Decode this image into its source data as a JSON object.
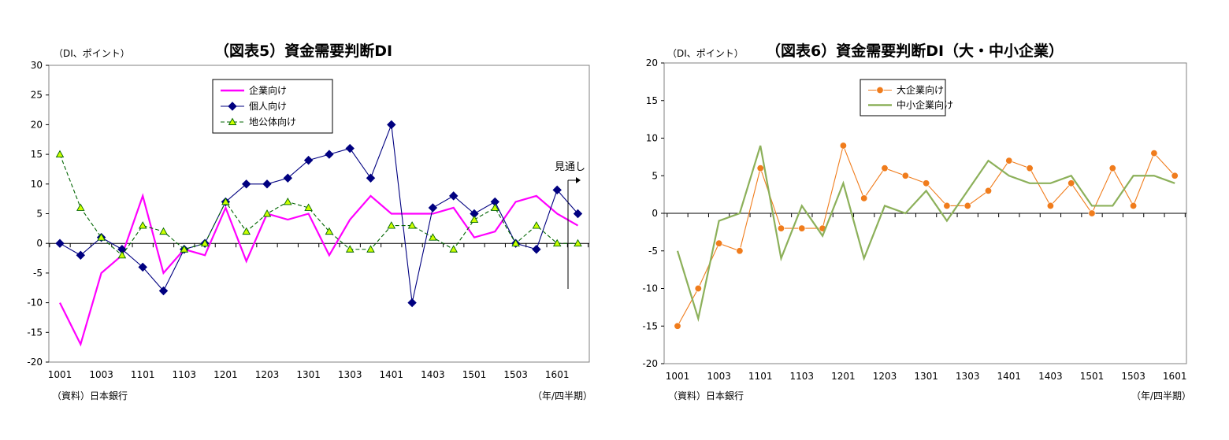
{
  "charts": [
    {
      "title": "（図表5）資金需要判断DI",
      "unit_label": "（DI、ポイント）",
      "source": "（資料）日本銀行",
      "period_label": "（年/四半期）",
      "outlook_label": "見通し"
    },
    {
      "title": "（図表6）資金需要判断DI（大・中小企業）",
      "unit_label": "（DI、ポイント）",
      "source": "（資料）日本銀行",
      "period_label": "（年/四半期）"
    }
  ],
  "chart_data": [
    {
      "type": "line",
      "title": "（図表5）資金需要判断DI",
      "ylabel": "（DI、ポイント）",
      "xlabel": "（年/四半期）",
      "ylim": [
        -20,
        30
      ],
      "yticks": [
        -20,
        -15,
        -10,
        -5,
        0,
        5,
        10,
        15,
        20,
        25,
        30
      ],
      "categories": [
        "1001",
        "1002",
        "1003",
        "1004",
        "1101",
        "1102",
        "1103",
        "1104",
        "1201",
        "1202",
        "1203",
        "1204",
        "1301",
        "1302",
        "1303",
        "1304",
        "1401",
        "1402",
        "1403",
        "1404",
        "1501",
        "1502",
        "1503",
        "1504",
        "1601",
        "1602"
      ],
      "tick_labels": [
        "1001",
        "1003",
        "1101",
        "1103",
        "1201",
        "1203",
        "1301",
        "1303",
        "1401",
        "1403",
        "1501",
        "1503",
        "1601"
      ],
      "legend_position": "top-center",
      "series": [
        {
          "name": "企業向け",
          "color": "#ff00ff",
          "style": "solid",
          "marker": "none",
          "values": [
            -10,
            -17,
            -5,
            -2,
            8,
            -5,
            -1,
            -2,
            6,
            -3,
            5,
            4,
            5,
            -2,
            4,
            8,
            5,
            5,
            5,
            6,
            1,
            2,
            7,
            8,
            5,
            3
          ]
        },
        {
          "name": "個人向け",
          "color": "#000080",
          "style": "solid",
          "marker": "diamond",
          "values": [
            0,
            -2,
            1,
            -1,
            -4,
            -8,
            -1,
            0,
            7,
            10,
            10,
            11,
            14,
            15,
            16,
            11,
            20,
            -10,
            6,
            8,
            5,
            7,
            0,
            -1,
            9,
            5
          ]
        },
        {
          "name": "地公体向け",
          "color": "#006400",
          "marker_fill": "#ccff00",
          "style": "dashed",
          "marker": "triangle",
          "values": [
            15,
            6,
            1,
            -2,
            3,
            2,
            -1,
            0,
            7,
            2,
            5,
            7,
            6,
            2,
            -1,
            -1,
            3,
            3,
            1,
            -1,
            4,
            6,
            0,
            3,
            0,
            0
          ]
        }
      ]
    },
    {
      "type": "line",
      "title": "（図表6）資金需要判断DI（大・中小企業）",
      "ylabel": "（DI、ポイント）",
      "xlabel": "（年/四半期）",
      "ylim": [
        -20,
        20
      ],
      "yticks": [
        -20,
        -15,
        -10,
        -5,
        0,
        5,
        10,
        15,
        20
      ],
      "categories": [
        "1001",
        "1002",
        "1003",
        "1004",
        "1101",
        "1102",
        "1103",
        "1104",
        "1201",
        "1202",
        "1203",
        "1204",
        "1301",
        "1302",
        "1303",
        "1304",
        "1401",
        "1402",
        "1403",
        "1404",
        "1501",
        "1502",
        "1503",
        "1504",
        "1601"
      ],
      "tick_labels": [
        "1001",
        "1003",
        "1101",
        "1103",
        "1201",
        "1203",
        "1301",
        "1303",
        "1401",
        "1403",
        "1501",
        "1503",
        "1601"
      ],
      "legend_position": "top-left",
      "series": [
        {
          "name": "大企業向け",
          "color": "#f07c1c",
          "style": "solid",
          "marker": "circle",
          "values": [
            -15,
            -10,
            -4,
            -5,
            6,
            -2,
            -2,
            -2,
            9,
            2,
            6,
            5,
            4,
            1,
            1,
            3,
            7,
            6,
            1,
            4,
            0,
            6,
            1,
            8,
            5
          ]
        },
        {
          "name": "中小企業向け",
          "color": "#8cb05a",
          "style": "solid",
          "marker": "none",
          "values": [
            -5,
            -14,
            -1,
            0,
            9,
            -6,
            1,
            -3,
            4,
            -6,
            1,
            0,
            3,
            -1,
            3,
            7,
            5,
            4,
            4,
            5,
            1,
            1,
            5,
            5,
            4
          ]
        }
      ]
    }
  ]
}
